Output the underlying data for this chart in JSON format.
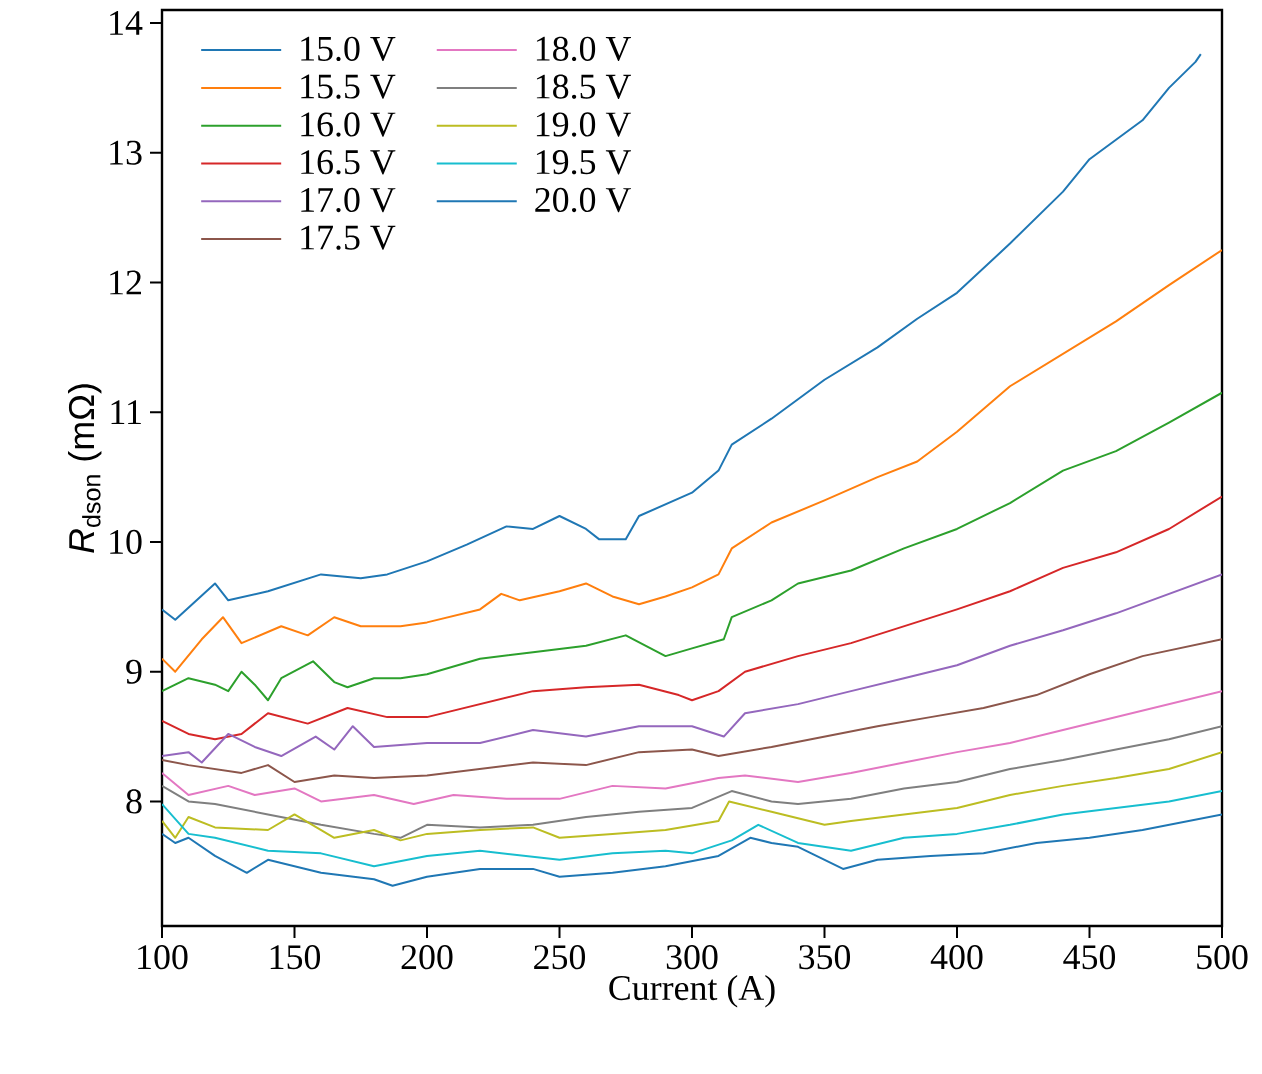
{
  "chart_data": {
    "type": "line",
    "xlabel": "Current (A)",
    "ylabel": "*R*$_{dson}$ (mΩ)",
    "xlim": [
      100,
      500
    ],
    "ylim": [
      7.04,
      14.1
    ],
    "xticks": [
      100,
      150,
      200,
      250,
      300,
      350,
      400,
      450,
      500
    ],
    "yticks": [
      8,
      9,
      10,
      11,
      12,
      13,
      14
    ],
    "legend": "top left",
    "grid": false,
    "marker": "none",
    "line_style": "solid",
    "series": [
      {
        "name": "15.0 V",
        "color": "#1f77b4",
        "x": [
          100,
          105,
          120,
          125,
          140,
          160,
          175,
          185,
          200,
          215,
          230,
          240,
          250,
          260,
          265,
          275,
          280,
          300,
          310,
          315,
          330,
          350,
          370,
          385,
          400,
          420,
          440,
          450,
          470,
          480,
          490,
          492
        ],
        "values": [
          9.48,
          9.4,
          9.68,
          9.55,
          9.62,
          9.75,
          9.72,
          9.75,
          9.85,
          9.98,
          10.12,
          10.1,
          10.2,
          10.1,
          10.02,
          10.02,
          10.2,
          10.38,
          10.55,
          10.75,
          10.95,
          11.25,
          11.5,
          11.72,
          11.92,
          12.3,
          12.7,
          12.95,
          13.25,
          13.5,
          13.7,
          13.76
        ]
      },
      {
        "name": "15.5 V",
        "color": "#ff7f0e",
        "x": [
          100,
          105,
          115,
          123,
          130,
          145,
          155,
          165,
          175,
          190,
          200,
          220,
          228,
          235,
          250,
          260,
          270,
          280,
          290,
          300,
          310,
          315,
          330,
          350,
          370,
          385,
          400,
          420,
          440,
          460,
          480,
          500
        ],
        "values": [
          9.1,
          9.0,
          9.25,
          9.42,
          9.22,
          9.35,
          9.28,
          9.42,
          9.35,
          9.35,
          9.38,
          9.48,
          9.6,
          9.55,
          9.62,
          9.68,
          9.58,
          9.52,
          9.58,
          9.65,
          9.75,
          9.95,
          10.15,
          10.32,
          10.5,
          10.62,
          10.85,
          11.2,
          11.45,
          11.7,
          11.98,
          12.25
        ]
      },
      {
        "name": "16.0 V",
        "color": "#2ca02c",
        "x": [
          100,
          110,
          120,
          125,
          130,
          135,
          140,
          145,
          157,
          165,
          170,
          180,
          190,
          200,
          220,
          240,
          260,
          275,
          290,
          300,
          312,
          315,
          330,
          340,
          360,
          380,
          400,
          420,
          440,
          460,
          480,
          500
        ],
        "values": [
          8.85,
          8.95,
          8.9,
          8.85,
          9.0,
          8.9,
          8.78,
          8.95,
          9.08,
          8.92,
          8.88,
          8.95,
          8.95,
          8.98,
          9.1,
          9.15,
          9.2,
          9.28,
          9.12,
          9.18,
          9.25,
          9.42,
          9.55,
          9.68,
          9.78,
          9.95,
          10.1,
          10.3,
          10.55,
          10.7,
          10.92,
          11.15
        ]
      },
      {
        "name": "16.5 V",
        "color": "#d62728",
        "x": [
          100,
          110,
          120,
          130,
          140,
          155,
          170,
          185,
          200,
          220,
          240,
          260,
          280,
          295,
          300,
          310,
          320,
          340,
          360,
          380,
          400,
          420,
          440,
          460,
          480,
          500
        ],
        "values": [
          8.62,
          8.52,
          8.48,
          8.52,
          8.68,
          8.6,
          8.72,
          8.65,
          8.65,
          8.75,
          8.85,
          8.88,
          8.9,
          8.82,
          8.78,
          8.85,
          9.0,
          9.12,
          9.22,
          9.35,
          9.48,
          9.62,
          9.8,
          9.92,
          10.1,
          10.35
        ]
      },
      {
        "name": "17.0 V",
        "color": "#9467bd",
        "x": [
          100,
          110,
          115,
          125,
          135,
          145,
          158,
          165,
          172,
          180,
          200,
          220,
          240,
          260,
          280,
          300,
          312,
          320,
          340,
          360,
          380,
          400,
          420,
          440,
          460,
          480,
          500
        ],
        "values": [
          8.35,
          8.38,
          8.3,
          8.52,
          8.42,
          8.35,
          8.5,
          8.4,
          8.58,
          8.42,
          8.45,
          8.45,
          8.55,
          8.5,
          8.58,
          8.58,
          8.5,
          8.68,
          8.75,
          8.85,
          8.95,
          9.05,
          9.2,
          9.32,
          9.45,
          9.6,
          9.75
        ]
      },
      {
        "name": "17.5 V",
        "color": "#8c564b",
        "x": [
          100,
          110,
          120,
          130,
          140,
          150,
          165,
          180,
          200,
          220,
          240,
          260,
          280,
          300,
          310,
          330,
          350,
          370,
          390,
          410,
          430,
          450,
          470,
          500
        ],
        "values": [
          8.32,
          8.28,
          8.25,
          8.22,
          8.28,
          8.15,
          8.2,
          8.18,
          8.2,
          8.25,
          8.3,
          8.28,
          8.38,
          8.4,
          8.35,
          8.42,
          8.5,
          8.58,
          8.65,
          8.72,
          8.82,
          8.98,
          9.12,
          9.25
        ]
      },
      {
        "name": "18.0 V",
        "color": "#e377c2",
        "x": [
          100,
          110,
          125,
          135,
          150,
          160,
          180,
          195,
          210,
          230,
          250,
          270,
          290,
          310,
          320,
          340,
          360,
          380,
          400,
          420,
          440,
          460,
          480,
          500
        ],
        "values": [
          8.22,
          8.05,
          8.12,
          8.05,
          8.1,
          8.0,
          8.05,
          7.98,
          8.05,
          8.02,
          8.02,
          8.12,
          8.1,
          8.18,
          8.2,
          8.15,
          8.22,
          8.3,
          8.38,
          8.45,
          8.55,
          8.65,
          8.75,
          8.85
        ]
      },
      {
        "name": "18.5 V",
        "color": "#7f7f7f",
        "x": [
          100,
          110,
          120,
          140,
          160,
          180,
          190,
          200,
          220,
          240,
          260,
          280,
          300,
          315,
          330,
          340,
          360,
          380,
          400,
          420,
          440,
          460,
          480,
          500
        ],
        "values": [
          8.12,
          8.0,
          7.98,
          7.9,
          7.82,
          7.75,
          7.72,
          7.82,
          7.8,
          7.82,
          7.88,
          7.92,
          7.95,
          8.08,
          8.0,
          7.98,
          8.02,
          8.1,
          8.15,
          8.25,
          8.32,
          8.4,
          8.48,
          8.58
        ]
      },
      {
        "name": "19.0 V",
        "color": "#bcbd22",
        "x": [
          100,
          105,
          110,
          120,
          140,
          150,
          165,
          180,
          190,
          200,
          220,
          240,
          250,
          270,
          290,
          310,
          314,
          330,
          350,
          360,
          380,
          400,
          420,
          440,
          460,
          480,
          500
        ],
        "values": [
          7.85,
          7.72,
          7.88,
          7.8,
          7.78,
          7.9,
          7.72,
          7.78,
          7.7,
          7.75,
          7.78,
          7.8,
          7.72,
          7.75,
          7.78,
          7.85,
          8.0,
          7.92,
          7.82,
          7.85,
          7.9,
          7.95,
          8.05,
          8.12,
          8.18,
          8.25,
          8.38
        ]
      },
      {
        "name": "19.5 V",
        "color": "#17becf",
        "x": [
          100,
          110,
          120,
          140,
          160,
          180,
          200,
          220,
          250,
          270,
          290,
          300,
          315,
          325,
          340,
          360,
          380,
          400,
          420,
          440,
          460,
          480,
          500
        ],
        "values": [
          7.98,
          7.75,
          7.72,
          7.62,
          7.6,
          7.5,
          7.58,
          7.62,
          7.55,
          7.6,
          7.62,
          7.6,
          7.7,
          7.82,
          7.68,
          7.62,
          7.72,
          7.75,
          7.82,
          7.9,
          7.95,
          8.0,
          8.08
        ]
      },
      {
        "name": "20.0 V",
        "color": "#1f77b4",
        "x": [
          100,
          105,
          110,
          120,
          132,
          140,
          160,
          180,
          187,
          200,
          220,
          240,
          250,
          270,
          290,
          310,
          322,
          330,
          340,
          357,
          370,
          390,
          410,
          430,
          450,
          470,
          500
        ],
        "values": [
          7.75,
          7.68,
          7.72,
          7.58,
          7.45,
          7.55,
          7.45,
          7.4,
          7.35,
          7.42,
          7.48,
          7.48,
          7.42,
          7.45,
          7.5,
          7.58,
          7.72,
          7.68,
          7.65,
          7.48,
          7.55,
          7.58,
          7.6,
          7.68,
          7.72,
          7.78,
          7.9
        ]
      }
    ]
  }
}
